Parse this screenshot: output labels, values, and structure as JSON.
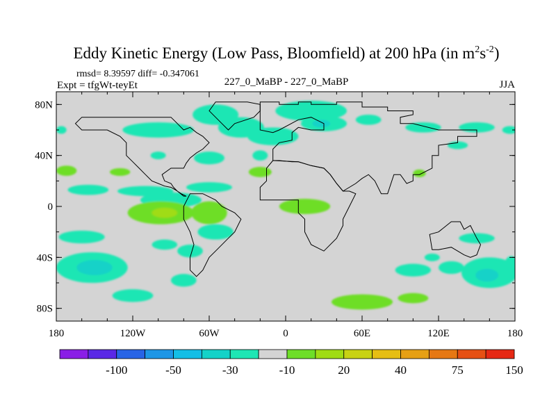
{
  "chart_data": {
    "type": "heatmap",
    "title": "Eddy Kinetic Energy (Low Pass, Bloomfield) at 200 hPa (in m",
    "title_unit_sup1": "2",
    "title_unit_mid": "s",
    "title_unit_sup2": "-2",
    "title_close": ")",
    "stats": "rmsd= 8.39597 diff= -0.347061",
    "left_label": "Expt = tfgWt-teyEt",
    "center_label": "227_0_MaBP - 227_0_MaBP",
    "right_label": "JJA",
    "xaxis": {
      "range": [
        -180,
        180
      ],
      "tick_values": [
        -180,
        -120,
        -60,
        0,
        60,
        120,
        180
      ],
      "tick_labels": [
        "180",
        "120W",
        "60W",
        "0",
        "60E",
        "120E",
        "180"
      ]
    },
    "yaxis": {
      "range": [
        -90,
        90
      ],
      "tick_values": [
        80,
        40,
        0,
        -40,
        -80
      ],
      "tick_labels": [
        "80N",
        "40N",
        "0",
        "40S",
        "80S"
      ]
    },
    "background_color": "#d4d4d4",
    "colorbar": {
      "colors": [
        "#8a1ee6",
        "#5a28e6",
        "#2864e6",
        "#1e96e6",
        "#14bee6",
        "#14d2c8",
        "#1ee6b4",
        "#d4d4d4",
        "#6ede28",
        "#a0dc14",
        "#c8d214",
        "#e6be14",
        "#e6a014",
        "#e67814",
        "#e65014",
        "#e62814"
      ],
      "labels": [
        "-100",
        "-50",
        "-30",
        "-10",
        "20",
        "40",
        "75",
        "150"
      ]
    },
    "regions": [
      {
        "level": "#1ee6b4",
        "lon": -152,
        "lat": -48,
        "rlon": 28,
        "rlat": 12
      },
      {
        "level": "#14d2c8",
        "lon": -150,
        "lat": -48,
        "rlon": 14,
        "rlat": 6
      },
      {
        "level": "#1ee6b4",
        "lon": -160,
        "lat": -24,
        "rlon": 18,
        "rlat": 5
      },
      {
        "level": "#1ee6b4",
        "lon": -120,
        "lat": -70,
        "rlon": 16,
        "rlat": 5
      },
      {
        "level": "#1ee6b4",
        "lon": -80,
        "lat": -58,
        "rlon": 10,
        "rlat": 5
      },
      {
        "level": "#1ee6b4",
        "lon": -95,
        "lat": -30,
        "rlon": 10,
        "rlat": 4
      },
      {
        "level": "#1ee6b4",
        "lon": -55,
        "lat": -20,
        "rlon": 14,
        "rlat": 6
      },
      {
        "level": "#1ee6b4",
        "lon": -75,
        "lat": -35,
        "rlon": 10,
        "rlat": 5
      },
      {
        "level": "#1ee6b4",
        "lon": -90,
        "lat": 5,
        "rlon": 24,
        "rlat": 6
      },
      {
        "level": "#6ede28",
        "lon": -98,
        "lat": -5,
        "rlon": 26,
        "rlat": 9
      },
      {
        "level": "#6ede28",
        "lon": -60,
        "lat": -5,
        "rlon": 14,
        "rlat": 9
      },
      {
        "level": "#a0dc14",
        "lon": -95,
        "lat": -5,
        "rlon": 10,
        "rlat": 4
      },
      {
        "level": "#6ede28",
        "lon": 15,
        "lat": 0,
        "rlon": 20,
        "rlat": 6
      },
      {
        "level": "#1ee6b4",
        "lon": -155,
        "lat": 13,
        "rlon": 16,
        "rlat": 4
      },
      {
        "level": "#1ee6b4",
        "lon": -110,
        "lat": 12,
        "rlon": 22,
        "rlat": 4
      },
      {
        "level": "#1ee6b4",
        "lon": -60,
        "lat": 15,
        "rlon": 18,
        "rlat": 4
      },
      {
        "level": "#6ede28",
        "lon": -172,
        "lat": 28,
        "rlon": 8,
        "rlat": 4
      },
      {
        "level": "#6ede28",
        "lon": -20,
        "lat": 27,
        "rlon": 9,
        "rlat": 4
      },
      {
        "level": "#6ede28",
        "lon": -130,
        "lat": 27,
        "rlon": 8,
        "rlat": 3
      },
      {
        "level": "#1ee6b4",
        "lon": -60,
        "lat": 38,
        "rlon": 12,
        "rlat": 5
      },
      {
        "level": "#1ee6b4",
        "lon": -100,
        "lat": 40,
        "rlon": 6,
        "rlat": 3
      },
      {
        "level": "#1ee6b4",
        "lon": -20,
        "lat": 40,
        "rlon": 6,
        "rlat": 4
      },
      {
        "level": "#1ee6b4",
        "lon": -100,
        "lat": 60,
        "rlon": 28,
        "rlat": 6
      },
      {
        "level": "#1ee6b4",
        "lon": -55,
        "lat": 72,
        "rlon": 18,
        "rlat": 8
      },
      {
        "level": "#1ee6b4",
        "lon": -35,
        "lat": 62,
        "rlon": 18,
        "rlat": 8
      },
      {
        "level": "#1ee6b4",
        "lon": -10,
        "lat": 55,
        "rlon": 20,
        "rlat": 7
      },
      {
        "level": "#1ee6b4",
        "lon": 20,
        "lat": 75,
        "rlon": 28,
        "rlat": 8
      },
      {
        "level": "#1ee6b4",
        "lon": 30,
        "lat": 65,
        "rlon": 18,
        "rlat": 6
      },
      {
        "level": "#14d2c8",
        "lon": 28,
        "lat": 65,
        "rlon": 7,
        "rlat": 3
      },
      {
        "level": "#1ee6b4",
        "lon": 65,
        "lat": 68,
        "rlon": 10,
        "rlat": 4
      },
      {
        "level": "#1ee6b4",
        "lon": 108,
        "lat": 62,
        "rlon": 14,
        "rlat": 4
      },
      {
        "level": "#1ee6b4",
        "lon": 150,
        "lat": 62,
        "rlon": 14,
        "rlat": 4
      },
      {
        "level": "#1ee6b4",
        "lon": 135,
        "lat": 48,
        "rlon": 8,
        "rlat": 3
      },
      {
        "level": "#1ee6b4",
        "lon": 176,
        "lat": 60,
        "rlon": 6,
        "rlat": 3
      },
      {
        "level": "#1ee6b4",
        "lon": -176,
        "lat": 60,
        "rlon": 4,
        "rlat": 3
      },
      {
        "level": "#6ede28",
        "lon": 105,
        "lat": 26,
        "rlon": 5,
        "rlat": 3
      },
      {
        "level": "#6ede28",
        "lon": 60,
        "lat": -75,
        "rlon": 24,
        "rlat": 6
      },
      {
        "level": "#6ede28",
        "lon": 100,
        "lat": -72,
        "rlon": 12,
        "rlat": 4
      },
      {
        "level": "#1ee6b4",
        "lon": 100,
        "lat": -50,
        "rlon": 14,
        "rlat": 5
      },
      {
        "level": "#1ee6b4",
        "lon": 130,
        "lat": -48,
        "rlon": 10,
        "rlat": 5
      },
      {
        "level": "#1ee6b4",
        "lon": 150,
        "lat": -25,
        "rlon": 14,
        "rlat": 4
      },
      {
        "level": "#1ee6b4",
        "lon": 160,
        "lat": -52,
        "rlon": 22,
        "rlat": 12
      },
      {
        "level": "#14d2c8",
        "lon": 158,
        "lat": -54,
        "rlon": 9,
        "rlat": 5
      },
      {
        "level": "#1ee6b4",
        "lon": 177,
        "lat": -45,
        "rlon": 5,
        "rlat": 6
      },
      {
        "level": "#1ee6b4",
        "lon": 115,
        "lat": -40,
        "rlon": 6,
        "rlat": 3
      }
    ],
    "outlines": [
      [
        [
          -20,
          82
        ],
        [
          -5,
          82
        ],
        [
          -5,
          80
        ],
        [
          10,
          80
        ],
        [
          10,
          82
        ],
        [
          20,
          82
        ],
        [
          20,
          80
        ],
        [
          40,
          80
        ],
        [
          40,
          82
        ],
        [
          60,
          82
        ],
        [
          60,
          78
        ],
        [
          80,
          78
        ],
        [
          80,
          75
        ],
        [
          100,
          75
        ],
        [
          100,
          72
        ],
        [
          90,
          70
        ],
        [
          90,
          65
        ],
        [
          100,
          65
        ],
        [
          120,
          60
        ],
        [
          150,
          60
        ],
        [
          150,
          55
        ],
        [
          135,
          55
        ],
        [
          135,
          50
        ],
        [
          120,
          48
        ],
        [
          120,
          40
        ],
        [
          115,
          40
        ],
        [
          115,
          30
        ],
        [
          105,
          25
        ],
        [
          100,
          25
        ],
        [
          100,
          20
        ],
        [
          95,
          18
        ],
        [
          90,
          25
        ],
        [
          85,
          25
        ],
        [
          80,
          10
        ],
        [
          75,
          10
        ],
        [
          70,
          20
        ],
        [
          65,
          25
        ],
        [
          60,
          22
        ],
        [
          55,
          18
        ],
        [
          50,
          15
        ],
        [
          45,
          12
        ],
        [
          40,
          18
        ],
        [
          35,
          25
        ],
        [
          30,
          30
        ],
        [
          20,
          32
        ],
        [
          10,
          35
        ],
        [
          5,
          35
        ],
        [
          -5,
          36
        ],
        [
          -10,
          36
        ],
        [
          -10,
          45
        ],
        [
          -5,
          50
        ],
        [
          5,
          52
        ],
        [
          5,
          58
        ],
        [
          10,
          62
        ],
        [
          20,
          60
        ],
        [
          30,
          60
        ],
        [
          30,
          65
        ],
        [
          20,
          70
        ],
        [
          10,
          68
        ],
        [
          -5,
          60
        ],
        [
          -10,
          58
        ],
        [
          -20,
          60
        ],
        [
          -20,
          82
        ]
      ],
      [
        [
          -10,
          36
        ],
        [
          -15,
          30
        ],
        [
          -15,
          20
        ],
        [
          -20,
          15
        ],
        [
          -20,
          5
        ],
        [
          -10,
          5
        ],
        [
          0,
          5
        ],
        [
          10,
          5
        ],
        [
          10,
          -5
        ],
        [
          15,
          -10
        ],
        [
          15,
          -20
        ],
        [
          20,
          -30
        ],
        [
          30,
          -35
        ],
        [
          40,
          -25
        ],
        [
          45,
          -15
        ],
        [
          45,
          -10
        ],
        [
          50,
          0
        ],
        [
          55,
          10
        ],
        [
          50,
          12
        ],
        [
          45,
          12
        ],
        [
          40,
          18
        ],
        [
          35,
          25
        ],
        [
          30,
          30
        ],
        [
          20,
          32
        ],
        [
          10,
          35
        ],
        [
          -10,
          36
        ]
      ],
      [
        [
          -75,
          10
        ],
        [
          -65,
          10
        ],
        [
          -55,
          5
        ],
        [
          -50,
          0
        ],
        [
          -40,
          -5
        ],
        [
          -35,
          -10
        ],
        [
          -40,
          -20
        ],
        [
          -45,
          -25
        ],
        [
          -55,
          -35
        ],
        [
          -60,
          -40
        ],
        [
          -65,
          -50
        ],
        [
          -70,
          -55
        ],
        [
          -75,
          -50
        ],
        [
          -75,
          -40
        ],
        [
          -72,
          -30
        ],
        [
          -75,
          -20
        ],
        [
          -80,
          -10
        ],
        [
          -80,
          0
        ],
        [
          -75,
          10
        ]
      ],
      [
        [
          -130,
          70
        ],
        [
          -120,
          70
        ],
        [
          -110,
          70
        ],
        [
          -100,
          70
        ],
        [
          -90,
          70
        ],
        [
          -85,
          65
        ],
        [
          -80,
          60
        ],
        [
          -75,
          62
        ],
        [
          -70,
          58
        ],
        [
          -65,
          55
        ],
        [
          -60,
          50
        ],
        [
          -65,
          45
        ],
        [
          -70,
          42
        ],
        [
          -75,
          38
        ],
        [
          -78,
          34
        ],
        [
          -80,
          30
        ],
        [
          -85,
          30
        ],
        [
          -90,
          30
        ],
        [
          -97,
          25
        ],
        [
          -95,
          20
        ],
        [
          -90,
          18
        ],
        [
          -88,
          15
        ],
        [
          -85,
          12
        ],
        [
          -80,
          8
        ],
        [
          -78,
          8
        ],
        [
          -82,
          10
        ],
        [
          -85,
          12
        ],
        [
          -90,
          15
        ],
        [
          -95,
          16
        ],
        [
          -100,
          18
        ],
        [
          -105,
          20
        ],
        [
          -110,
          25
        ],
        [
          -115,
          30
        ],
        [
          -120,
          35
        ],
        [
          -125,
          40
        ],
        [
          -125,
          50
        ],
        [
          -130,
          55
        ],
        [
          -140,
          60
        ],
        [
          -150,
          60
        ],
        [
          -160,
          60
        ],
        [
          -165,
          65
        ],
        [
          -160,
          70
        ],
        [
          -150,
          70
        ],
        [
          -140,
          70
        ],
        [
          -130,
          70
        ]
      ],
      [
        [
          -55,
          82
        ],
        [
          -30,
          82
        ],
        [
          -20,
          80
        ],
        [
          -20,
          75
        ],
        [
          -25,
          70
        ],
        [
          -40,
          65
        ],
        [
          -45,
          60
        ],
        [
          -50,
          65
        ],
        [
          -55,
          70
        ],
        [
          -60,
          75
        ],
        [
          -55,
          82
        ]
      ],
      [
        [
          113,
          -22
        ],
        [
          120,
          -20
        ],
        [
          130,
          -12
        ],
        [
          137,
          -12
        ],
        [
          140,
          -18
        ],
        [
          145,
          -15
        ],
        [
          150,
          -25
        ],
        [
          153,
          -30
        ],
        [
          150,
          -38
        ],
        [
          145,
          -40
        ],
        [
          140,
          -38
        ],
        [
          135,
          -35
        ],
        [
          130,
          -32
        ],
        [
          120,
          -34
        ],
        [
          115,
          -34
        ],
        [
          113,
          -22
        ]
      ]
    ]
  }
}
